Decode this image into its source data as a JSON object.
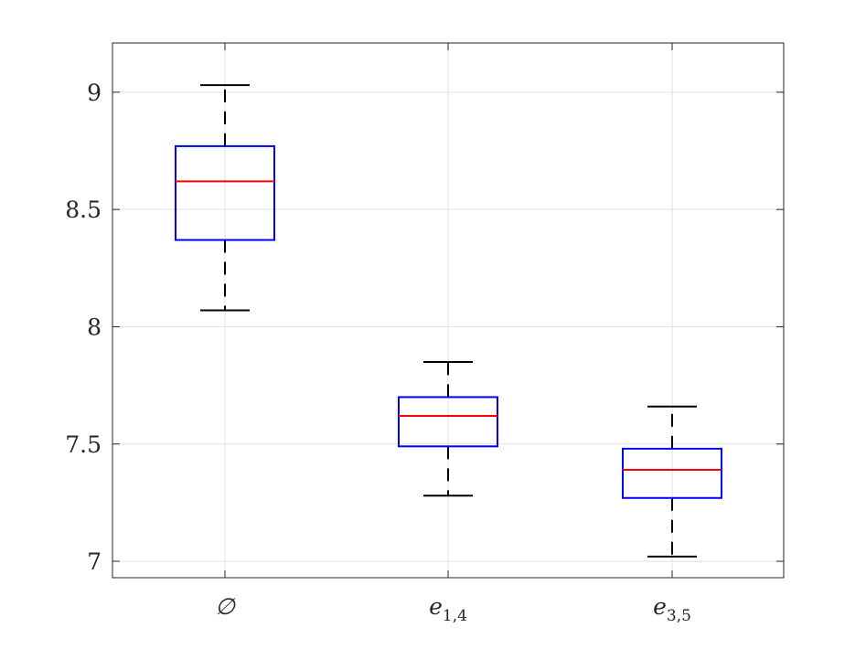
{
  "chart_data": {
    "type": "box",
    "title": "",
    "xlabel": "",
    "ylabel": "",
    "ylim": [
      6.93,
      9.21
    ],
    "yticks": [
      7,
      7.5,
      8,
      8.5,
      9
    ],
    "ytick_labels": [
      "7",
      "7.5",
      "8",
      "8.5",
      "9"
    ],
    "grid": true,
    "categories": [
      {
        "base": "∅",
        "sub": ""
      },
      {
        "base": "e",
        "sub": "1,4"
      },
      {
        "base": "e",
        "sub": "3,5"
      }
    ],
    "boxes": [
      {
        "whisker_low": 8.07,
        "q1": 8.37,
        "median": 8.62,
        "q3": 8.77,
        "whisker_high": 9.03
      },
      {
        "whisker_low": 7.28,
        "q1": 7.49,
        "median": 7.62,
        "q3": 7.7,
        "whisker_high": 7.85
      },
      {
        "whisker_low": 7.02,
        "q1": 7.27,
        "median": 7.39,
        "q3": 7.48,
        "whisker_high": 7.66
      }
    ],
    "colors": {
      "box": "#0000ff",
      "median": "#ff0000",
      "whisker": "#000000",
      "grid": "#e0e0e0",
      "axes": "#262626"
    }
  }
}
